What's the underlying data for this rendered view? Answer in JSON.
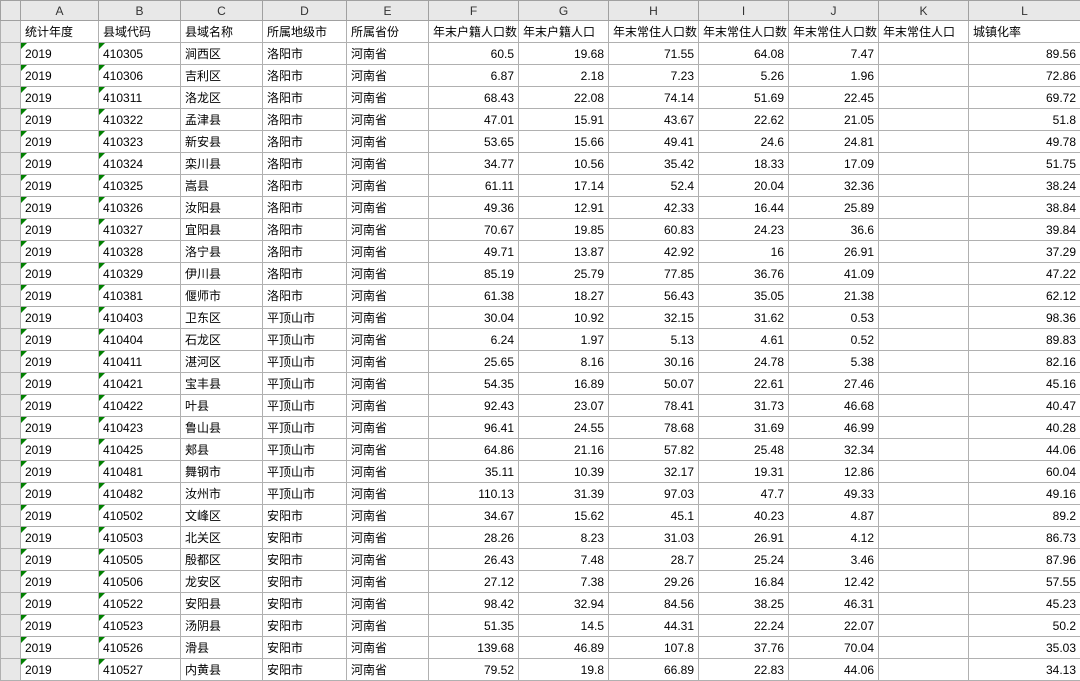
{
  "colors": {
    "grid_border": "#b0b0b0",
    "header_bg": "#e8e8e8",
    "marker": "#008000",
    "text": "#000000",
    "bg": "#ffffff"
  },
  "column_letters": [
    "A",
    "B",
    "C",
    "D",
    "E",
    "F",
    "G",
    "H",
    "I",
    "J",
    "K",
    "L"
  ],
  "headers": [
    "统计年度",
    "县域代码",
    "县域名称",
    "所属地级市",
    "所属省份",
    "年末户籍人口数",
    "年末户籍人口",
    "年末常住人口数",
    "年末常住人口数",
    "年末常住人口数",
    "年末常住人口",
    "城镇化率"
  ],
  "column_types": [
    "txt",
    "txt",
    "txt",
    "txt",
    "txt",
    "num",
    "num",
    "num",
    "num",
    "num",
    "num",
    "num"
  ],
  "mark_cols": [
    0,
    1
  ],
  "rows": [
    [
      "2019",
      "410305",
      "涧西区",
      "洛阳市",
      "河南省",
      "60.5",
      "19.68",
      "71.55",
      "64.08",
      "7.47",
      "",
      "89.56"
    ],
    [
      "2019",
      "410306",
      "吉利区",
      "洛阳市",
      "河南省",
      "6.87",
      "2.18",
      "7.23",
      "5.26",
      "1.96",
      "",
      "72.86"
    ],
    [
      "2019",
      "410311",
      "洛龙区",
      "洛阳市",
      "河南省",
      "68.43",
      "22.08",
      "74.14",
      "51.69",
      "22.45",
      "",
      "69.72"
    ],
    [
      "2019",
      "410322",
      "孟津县",
      "洛阳市",
      "河南省",
      "47.01",
      "15.91",
      "43.67",
      "22.62",
      "21.05",
      "",
      "51.8"
    ],
    [
      "2019",
      "410323",
      "新安县",
      "洛阳市",
      "河南省",
      "53.65",
      "15.66",
      "49.41",
      "24.6",
      "24.81",
      "",
      "49.78"
    ],
    [
      "2019",
      "410324",
      "栾川县",
      "洛阳市",
      "河南省",
      "34.77",
      "10.56",
      "35.42",
      "18.33",
      "17.09",
      "",
      "51.75"
    ],
    [
      "2019",
      "410325",
      "嵩县",
      "洛阳市",
      "河南省",
      "61.11",
      "17.14",
      "52.4",
      "20.04",
      "32.36",
      "",
      "38.24"
    ],
    [
      "2019",
      "410326",
      "汝阳县",
      "洛阳市",
      "河南省",
      "49.36",
      "12.91",
      "42.33",
      "16.44",
      "25.89",
      "",
      "38.84"
    ],
    [
      "2019",
      "410327",
      "宜阳县",
      "洛阳市",
      "河南省",
      "70.67",
      "19.85",
      "60.83",
      "24.23",
      "36.6",
      "",
      "39.84"
    ],
    [
      "2019",
      "410328",
      "洛宁县",
      "洛阳市",
      "河南省",
      "49.71",
      "13.87",
      "42.92",
      "16",
      "26.91",
      "",
      "37.29"
    ],
    [
      "2019",
      "410329",
      "伊川县",
      "洛阳市",
      "河南省",
      "85.19",
      "25.79",
      "77.85",
      "36.76",
      "41.09",
      "",
      "47.22"
    ],
    [
      "2019",
      "410381",
      "偃师市",
      "洛阳市",
      "河南省",
      "61.38",
      "18.27",
      "56.43",
      "35.05",
      "21.38",
      "",
      "62.12"
    ],
    [
      "2019",
      "410403",
      "卫东区",
      "平顶山市",
      "河南省",
      "30.04",
      "10.92",
      "32.15",
      "31.62",
      "0.53",
      "",
      "98.36"
    ],
    [
      "2019",
      "410404",
      "石龙区",
      "平顶山市",
      "河南省",
      "6.24",
      "1.97",
      "5.13",
      "4.61",
      "0.52",
      "",
      "89.83"
    ],
    [
      "2019",
      "410411",
      "湛河区",
      "平顶山市",
      "河南省",
      "25.65",
      "8.16",
      "30.16",
      "24.78",
      "5.38",
      "",
      "82.16"
    ],
    [
      "2019",
      "410421",
      "宝丰县",
      "平顶山市",
      "河南省",
      "54.35",
      "16.89",
      "50.07",
      "22.61",
      "27.46",
      "",
      "45.16"
    ],
    [
      "2019",
      "410422",
      "叶县",
      "平顶山市",
      "河南省",
      "92.43",
      "23.07",
      "78.41",
      "31.73",
      "46.68",
      "",
      "40.47"
    ],
    [
      "2019",
      "410423",
      "鲁山县",
      "平顶山市",
      "河南省",
      "96.41",
      "24.55",
      "78.68",
      "31.69",
      "46.99",
      "",
      "40.28"
    ],
    [
      "2019",
      "410425",
      "郏县",
      "平顶山市",
      "河南省",
      "64.86",
      "21.16",
      "57.82",
      "25.48",
      "32.34",
      "",
      "44.06"
    ],
    [
      "2019",
      "410481",
      "舞钢市",
      "平顶山市",
      "河南省",
      "35.11",
      "10.39",
      "32.17",
      "19.31",
      "12.86",
      "",
      "60.04"
    ],
    [
      "2019",
      "410482",
      "汝州市",
      "平顶山市",
      "河南省",
      "110.13",
      "31.39",
      "97.03",
      "47.7",
      "49.33",
      "",
      "49.16"
    ],
    [
      "2019",
      "410502",
      "文峰区",
      "安阳市",
      "河南省",
      "34.67",
      "15.62",
      "45.1",
      "40.23",
      "4.87",
      "",
      "89.2"
    ],
    [
      "2019",
      "410503",
      "北关区",
      "安阳市",
      "河南省",
      "28.26",
      "8.23",
      "31.03",
      "26.91",
      "4.12",
      "",
      "86.73"
    ],
    [
      "2019",
      "410505",
      "殷都区",
      "安阳市",
      "河南省",
      "26.43",
      "7.48",
      "28.7",
      "25.24",
      "3.46",
      "",
      "87.96"
    ],
    [
      "2019",
      "410506",
      "龙安区",
      "安阳市",
      "河南省",
      "27.12",
      "7.38",
      "29.26",
      "16.84",
      "12.42",
      "",
      "57.55"
    ],
    [
      "2019",
      "410522",
      "安阳县",
      "安阳市",
      "河南省",
      "98.42",
      "32.94",
      "84.56",
      "38.25",
      "46.31",
      "",
      "45.23"
    ],
    [
      "2019",
      "410523",
      "汤阴县",
      "安阳市",
      "河南省",
      "51.35",
      "14.5",
      "44.31",
      "22.24",
      "22.07",
      "",
      "50.2"
    ],
    [
      "2019",
      "410526",
      "滑县",
      "安阳市",
      "河南省",
      "139.68",
      "46.89",
      "107.8",
      "37.76",
      "70.04",
      "",
      "35.03"
    ],
    [
      "2019",
      "410527",
      "内黄县",
      "安阳市",
      "河南省",
      "79.52",
      "19.8",
      "66.89",
      "22.83",
      "44.06",
      "",
      "34.13"
    ]
  ]
}
